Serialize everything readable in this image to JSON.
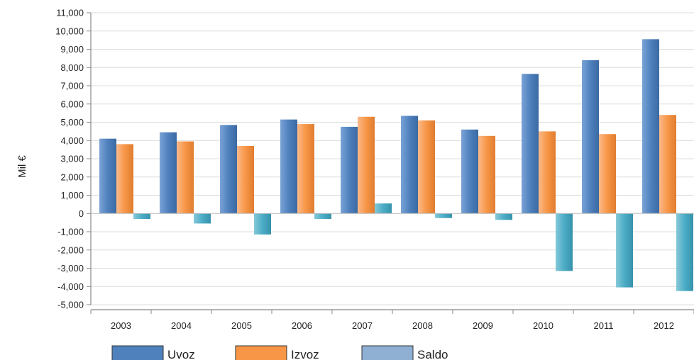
{
  "chart_data": {
    "type": "bar",
    "title": "",
    "xlabel": "",
    "ylabel": "Mil €",
    "categories": [
      "2003",
      "2004",
      "2005",
      "2006",
      "2007",
      "2008",
      "2009",
      "2010",
      "2011",
      "2012"
    ],
    "ylim": [
      -5000,
      11000
    ],
    "yticks": [
      11000,
      10000,
      9000,
      8000,
      7000,
      6000,
      5000,
      4000,
      3000,
      2000,
      1000,
      0,
      -1000,
      -2000,
      -3000,
      -4000,
      -5000
    ],
    "ytick_labels": [
      "11,000",
      "10,000",
      "9,000",
      "8,000",
      "7,000",
      "6,000",
      "5,000",
      "4,000",
      "3,000",
      "2,000",
      "1,000",
      "0",
      "-1,000",
      "-2,000",
      "-3,000",
      "-4,000",
      "-5,000"
    ],
    "grid": true,
    "legend_position": "bottom",
    "series": [
      {
        "name": "Uvoz",
        "color": "#4f81bd",
        "values": [
          4100,
          4450,
          4850,
          5150,
          4750,
          5350,
          4600,
          7650,
          8400,
          9550
        ]
      },
      {
        "name": "Izvoz",
        "color": "#f79646",
        "values": [
          3800,
          3950,
          3700,
          4900,
          5300,
          5100,
          4250,
          4500,
          4350,
          5400
        ]
      },
      {
        "name": "Saldo",
        "color": "#4bacc6",
        "values": [
          -300,
          -550,
          -1150,
          -300,
          550,
          -250,
          -350,
          -3150,
          -4050,
          -4250
        ]
      }
    ],
    "legend_swatch_colors": [
      "#4f81bd",
      "#f79646",
      "#8fb0d3"
    ]
  }
}
